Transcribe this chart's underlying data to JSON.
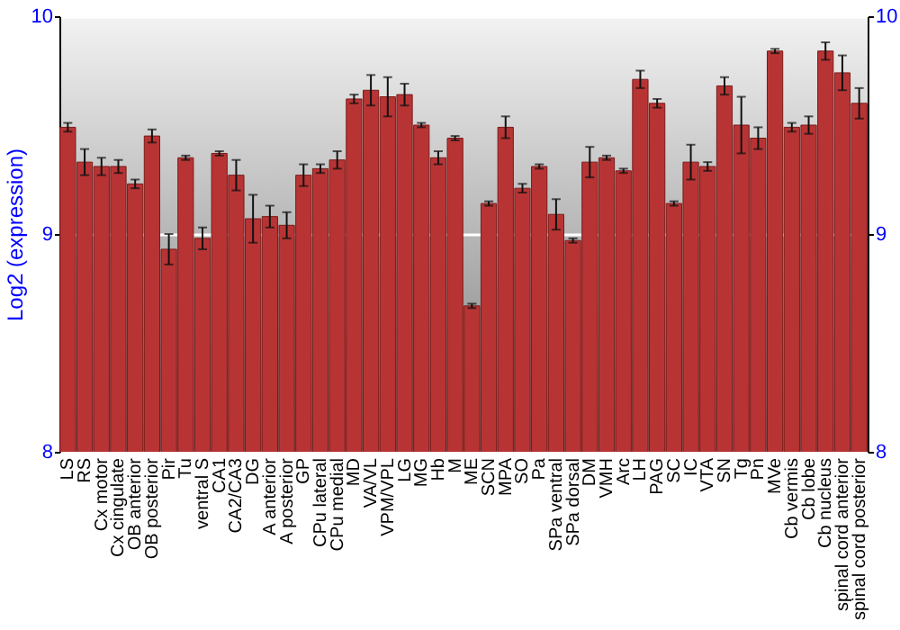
{
  "chart_data": {
    "type": "bar",
    "ylabel": "Log2 (expression)",
    "categories": [
      "LS",
      "RS",
      "Cx motor",
      "Cx cingulate",
      "OB anterior",
      "OB posterior",
      "Pir",
      "Tu",
      "ventral S",
      "CA1",
      "CA2/CA3",
      "DG",
      "A anterior",
      "A posterior",
      "GP",
      "CPu lateral",
      "CPu medial",
      "MD",
      "VA/VL",
      "VPM/VPL",
      "LG",
      "MG",
      "Hb",
      "M",
      "ME",
      "SCN",
      "MPA",
      "SO",
      "Pa",
      "SPa ventral",
      "SPa dorsal",
      "DM",
      "VMH",
      "Arc",
      "LH",
      "PAG",
      "SC",
      "IC",
      "VTA",
      "SN",
      "Tg",
      "Pn",
      "MVe",
      "Cb vermis",
      "Cb lobe",
      "Cb nucleus",
      "spinal cord anterior",
      "spinal cord posterior"
    ],
    "values": [
      9.49,
      9.33,
      9.31,
      9.31,
      9.23,
      9.45,
      8.93,
      9.35,
      8.98,
      9.37,
      9.27,
      9.07,
      9.08,
      9.04,
      9.27,
      9.3,
      9.34,
      9.62,
      9.66,
      9.63,
      9.64,
      9.5,
      9.35,
      9.44,
      8.67,
      9.14,
      9.49,
      9.21,
      9.31,
      9.09,
      8.97,
      9.33,
      9.35,
      9.29,
      9.71,
      9.6,
      9.14,
      9.33,
      9.31,
      9.68,
      9.5,
      9.44,
      9.84,
      9.49,
      9.5,
      9.84,
      9.74,
      9.6
    ],
    "errors": [
      0.02,
      0.06,
      0.04,
      0.03,
      0.02,
      0.03,
      0.07,
      0.01,
      0.05,
      0.01,
      0.07,
      0.11,
      0.05,
      0.06,
      0.05,
      0.02,
      0.04,
      0.02,
      0.07,
      0.09,
      0.05,
      0.01,
      0.03,
      0.01,
      0.01,
      0.01,
      0.05,
      0.02,
      0.01,
      0.07,
      0.01,
      0.07,
      0.01,
      0.01,
      0.04,
      0.02,
      0.01,
      0.08,
      0.02,
      0.04,
      0.13,
      0.05,
      0.01,
      0.02,
      0.04,
      0.04,
      0.08,
      0.07
    ],
    "color": "#b83434",
    "ylim": [
      8,
      10
    ],
    "yticks": [
      8,
      9,
      10
    ],
    "y2lim": [
      8,
      10
    ],
    "y2ticks": [
      8,
      9,
      10
    ],
    "grid": "y"
  }
}
